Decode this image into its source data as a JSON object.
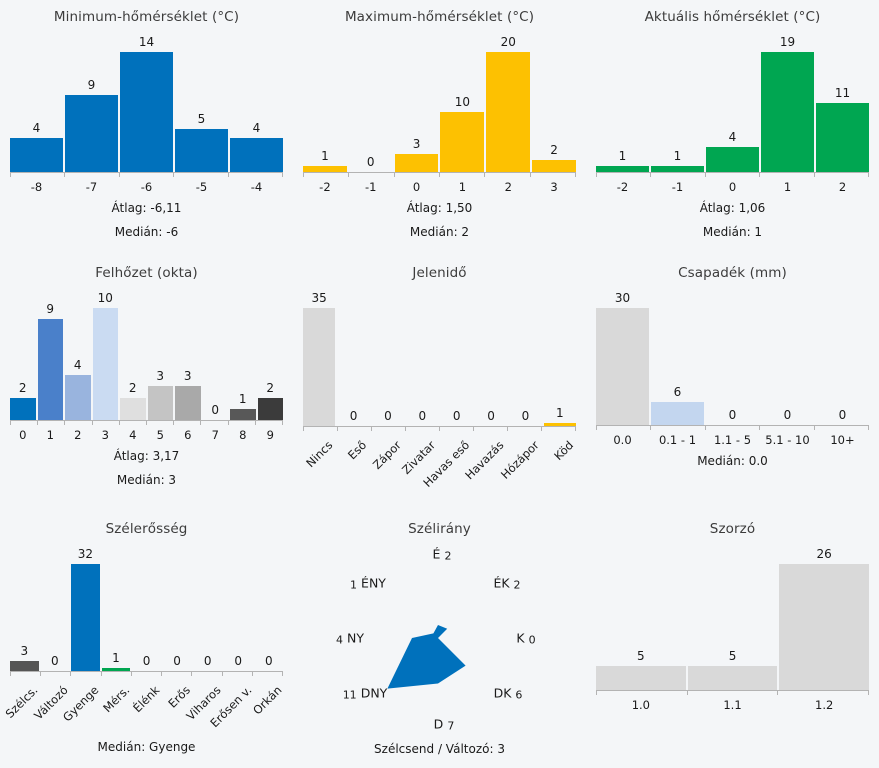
{
  "page_background": "#f4f6f8",
  "accent_colors": {
    "blue": "#0071bc",
    "gold": "#fdc101",
    "green": "#00a651",
    "gray": "#d9d9d9"
  },
  "chart_data": [
    {
      "key": "min-temperature",
      "type": "bar",
      "title": "Minimum-hőmérséklet (°C)",
      "categories": [
        "-8",
        "-7",
        "-6",
        "-5",
        "-4"
      ],
      "values": [
        4,
        9,
        14,
        5,
        4
      ],
      "bar_colors": [
        "#0071bc",
        "#0071bc",
        "#0071bc",
        "#0071bc",
        "#0071bc"
      ],
      "rotated_labels": false,
      "stats": [
        "Átlag: -6,11",
        "Medián: -6"
      ]
    },
    {
      "key": "max-temperature",
      "type": "bar",
      "title": "Maximum-hőmérséklet (°C)",
      "categories": [
        "-2",
        "-1",
        "0",
        "1",
        "2",
        "3"
      ],
      "values": [
        1,
        0,
        3,
        10,
        20,
        2
      ],
      "bar_colors": [
        "#fdc101",
        "#fdc101",
        "#fdc101",
        "#fdc101",
        "#fdc101",
        "#fdc101"
      ],
      "rotated_labels": false,
      "stats": [
        "Átlag: 1,50",
        "Medián: 2"
      ]
    },
    {
      "key": "current-temperature",
      "type": "bar",
      "title": "Aktuális hőmérséklet (°C)",
      "categories": [
        "-2",
        "-1",
        "0",
        "1",
        "2"
      ],
      "values": [
        1,
        1,
        4,
        19,
        11
      ],
      "bar_colors": [
        "#00a651",
        "#00a651",
        "#00a651",
        "#00a651",
        "#00a651"
      ],
      "rotated_labels": false,
      "stats": [
        "Átlag: 1,06",
        "Medián: 1"
      ]
    },
    {
      "key": "cloud-cover",
      "type": "bar",
      "title": "Felhőzet (okta)",
      "categories": [
        "0",
        "1",
        "2",
        "3",
        "4",
        "5",
        "6",
        "7",
        "8",
        "9"
      ],
      "values": [
        2,
        9,
        4,
        10,
        2,
        3,
        3,
        0,
        1,
        2
      ],
      "bar_colors": [
        "#0071bc",
        "#4a80ca",
        "#99b4de",
        "#cadbf2",
        "#dfdfdf",
        "#c4c4c4",
        "#a9a9a9",
        "#c4c4c4",
        "#585858",
        "#3b3b3b"
      ],
      "rotated_labels": false,
      "stats": [
        "Átlag: 3,17",
        "Medián: 3"
      ]
    },
    {
      "key": "present-weather",
      "type": "bar",
      "title": "Jelenidő",
      "categories": [
        "Nincs",
        "Eső",
        "Zápor",
        "Zivatar",
        "Havas eső",
        "Havazás",
        "Hózápor",
        "Köd"
      ],
      "values": [
        35,
        0,
        0,
        0,
        0,
        0,
        0,
        1
      ],
      "bar_colors": [
        "#d9d9d9",
        "#d9d9d9",
        "#d9d9d9",
        "#d9d9d9",
        "#d9d9d9",
        "#d9d9d9",
        "#d9d9d9",
        "#fdc101"
      ],
      "rotated_labels": true,
      "stats": []
    },
    {
      "key": "precipitation",
      "type": "bar",
      "title": "Csapadék (mm)",
      "categories": [
        "0.0",
        "0.1 - 1",
        "1.1 - 5",
        "5.1 - 10",
        "10+"
      ],
      "values": [
        30,
        6,
        0,
        0,
        0
      ],
      "bar_colors": [
        "#d9d9d9",
        "#c3d6ef",
        "#d9d9d9",
        "#d9d9d9",
        "#d9d9d9"
      ],
      "rotated_labels": false,
      "stats": [
        "Medián: 0.0"
      ]
    },
    {
      "key": "wind-strength",
      "type": "bar",
      "title": "Szélerősség",
      "categories": [
        "Szélcs.",
        "Változó",
        "Gyenge",
        "Mérs.",
        "Élénk",
        "Erős",
        "Viharos",
        "Erősen v.",
        "Orkán"
      ],
      "values": [
        3,
        0,
        32,
        1,
        0,
        0,
        0,
        0,
        0
      ],
      "bar_colors": [
        "#555555",
        "#9a9a9a",
        "#0071bc",
        "#00a651",
        "#d9d9d9",
        "#d9d9d9",
        "#d9d9d9",
        "#d9d9d9",
        "#d9d9d9"
      ],
      "rotated_labels": true,
      "stats": [
        "Medián: Gyenge"
      ]
    },
    {
      "key": "wind-direction",
      "type": "rose",
      "title": "Szélirány",
      "color": "#0071bc",
      "directions": [
        {
          "name": "É",
          "value": 2,
          "pos": "n",
          "value_first": false
        },
        {
          "name": "ÉK",
          "value": 2,
          "pos": "ne",
          "value_first": false
        },
        {
          "name": "K",
          "value": 0,
          "pos": "e",
          "value_first": false
        },
        {
          "name": "DK",
          "value": 6,
          "pos": "se",
          "value_first": false
        },
        {
          "name": "D",
          "value": 7,
          "pos": "s",
          "value_first": false
        },
        {
          "name": "DNY",
          "value": 11,
          "pos": "sw",
          "value_first": true
        },
        {
          "name": "NY",
          "value": 4,
          "pos": "w",
          "value_first": true
        },
        {
          "name": "ÉNY",
          "value": 1,
          "pos": "nw",
          "value_first": true
        }
      ],
      "note": "Szélcsend / Változó: 3"
    },
    {
      "key": "multiplier",
      "type": "bar",
      "title": "Szorzó",
      "categories": [
        "1.0",
        "1.1",
        "1.2"
      ],
      "values": [
        5,
        5,
        26
      ],
      "bar_colors": [
        "#d9d9d9",
        "#d9d9d9",
        "#d9d9d9"
      ],
      "rotated_labels": false,
      "stats": []
    }
  ]
}
